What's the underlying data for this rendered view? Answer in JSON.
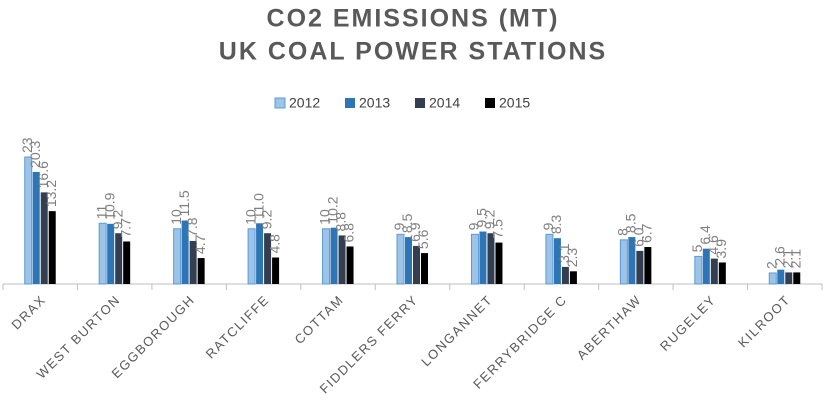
{
  "chart_data": {
    "type": "bar",
    "title": "CO2 EMISSIONS (MT)",
    "subtitle": "UK COAL POWER STATIONS",
    "categories": [
      "DRAX",
      "WEST BURTON",
      "EGGBOROUGH",
      "RATCLIFFE",
      "COTTAM",
      "FIDDLERS FERRY",
      "LONGANNET",
      "FERRYBRIDGE C",
      "ABERTHAW",
      "RUGELEY",
      "KILROOT"
    ],
    "series": [
      {
        "name": "2012",
        "color": "#9dc3e6",
        "values": [
          23,
          11,
          10,
          10,
          10,
          9,
          9,
          9,
          8,
          5,
          2
        ]
      },
      {
        "name": "2013",
        "color": "#2e75b6",
        "values": [
          20.3,
          10.9,
          11.5,
          11.0,
          10.2,
          8.5,
          9.5,
          8.3,
          8.5,
          6.4,
          2.6
        ],
        "value_labels": [
          "20.3",
          "10.9",
          "11.5",
          "11.0",
          "10.2",
          "8.5",
          "9.5",
          "8.3",
          "8.5",
          "6.4",
          "2.6"
        ]
      },
      {
        "name": "2014",
        "color": "#333f50",
        "values": [
          16.6,
          9.2,
          7.8,
          9.2,
          8.8,
          6.9,
          9.2,
          3.1,
          6.0,
          4.6,
          2.1
        ],
        "value_labels": [
          "16.6",
          "9.2",
          "7.8",
          "9.2",
          "8.8",
          "6.9",
          "9.2",
          "3.1",
          "6.0",
          "4.6",
          "2.1"
        ]
      },
      {
        "name": "2015",
        "color": "#000000",
        "values": [
          13.2,
          7.7,
          4.7,
          4.8,
          6.8,
          5.6,
          7.5,
          2.3,
          6.7,
          3.9,
          2.1
        ]
      }
    ],
    "ylim": [
      0,
      25
    ],
    "grid": false,
    "legend": "top"
  }
}
